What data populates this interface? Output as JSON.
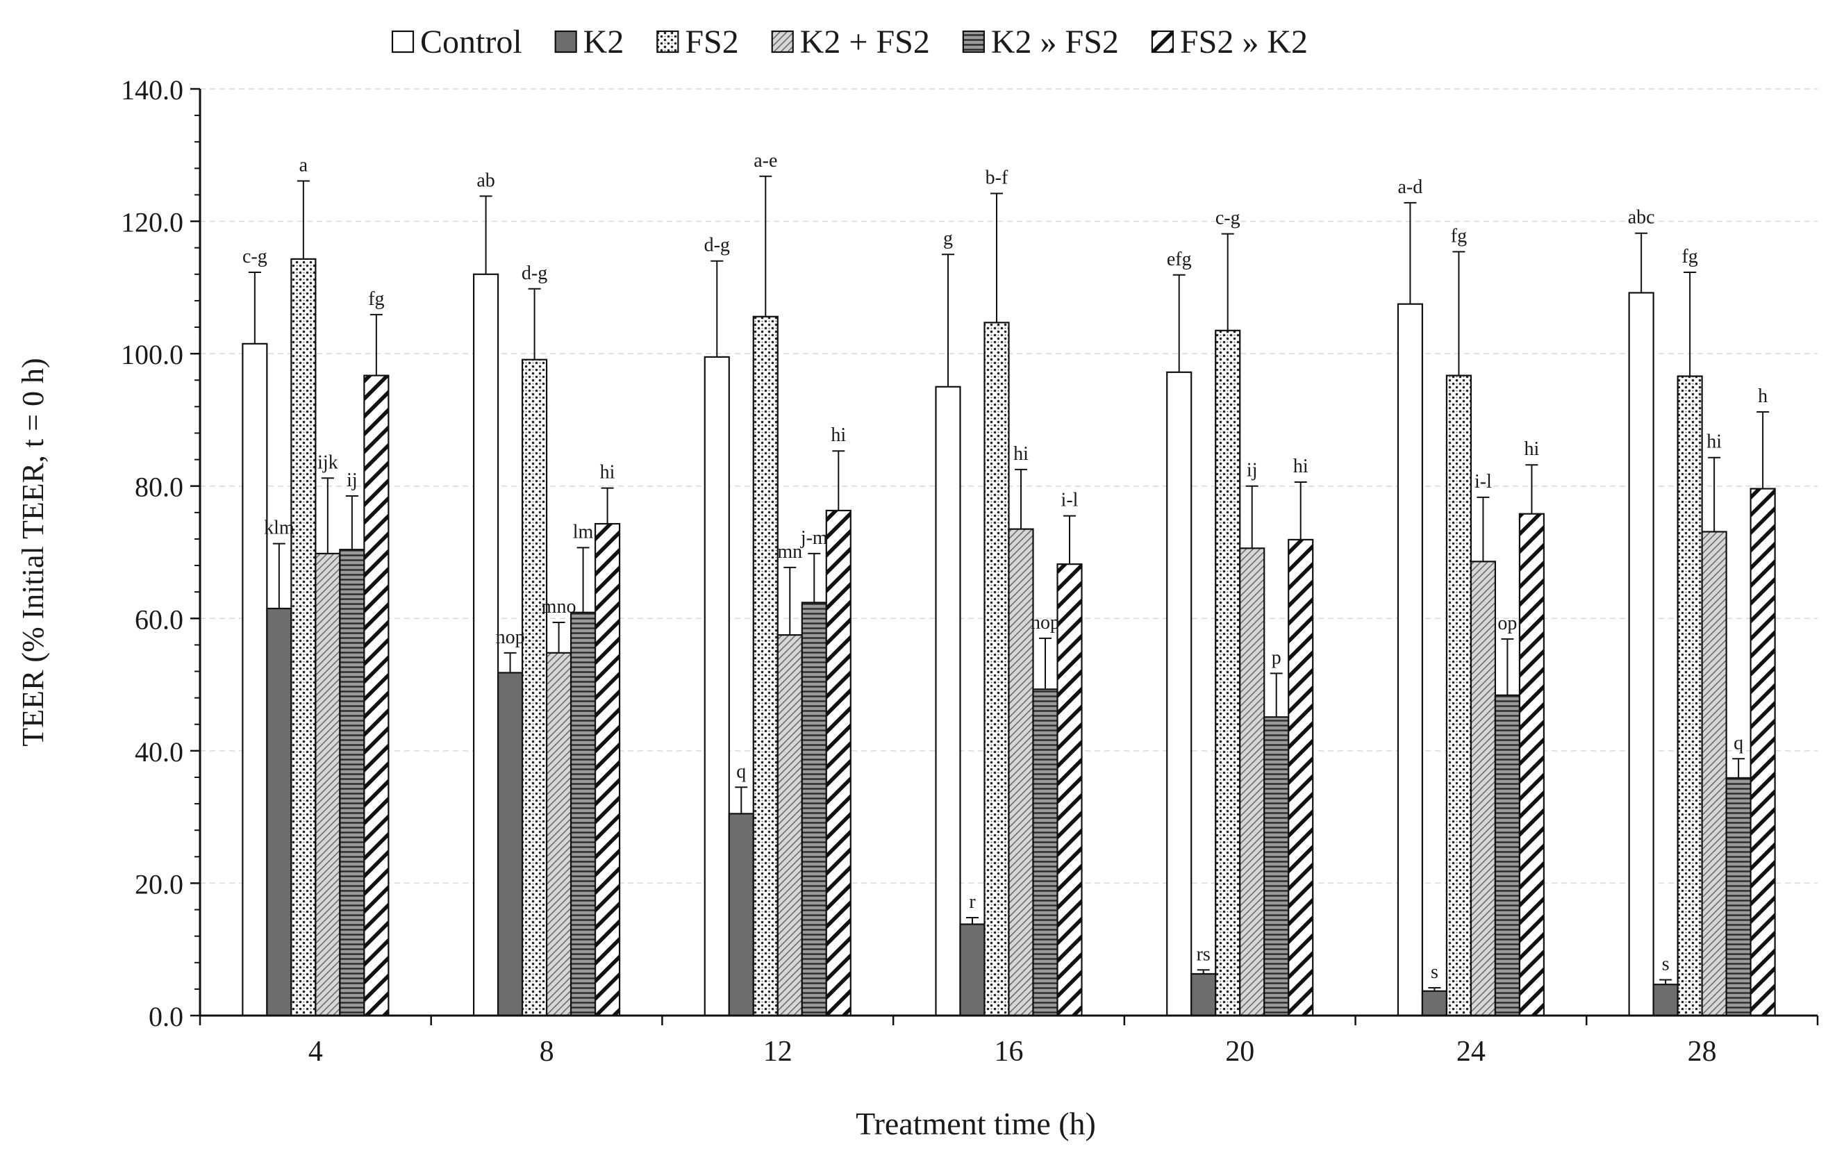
{
  "chart_data": {
    "type": "bar",
    "title": "",
    "xlabel": "Treatment time (h)",
    "ylabel": "TEER (% Initial TEER, t = 0 h)",
    "ylim": [
      0,
      140
    ],
    "yticks": [
      "0.0",
      "20.0",
      "40.0",
      "60.0",
      "80.0",
      "100.0",
      "120.0",
      "140.0"
    ],
    "grid": "horizontal dashed",
    "legend_position": "top-center",
    "categories": [
      "4",
      "8",
      "12",
      "16",
      "20",
      "24",
      "28"
    ],
    "series": [
      {
        "name": "Control",
        "pattern": "white",
        "values": [
          101.5,
          112,
          99.5,
          95,
          97.2,
          107.5,
          109.2
        ],
        "errors": [
          10.8,
          11.8,
          14.5,
          20,
          14.7,
          15.3,
          9
        ],
        "letters": [
          "c-g",
          "ab",
          "d-g",
          "g",
          "efg",
          "a-d",
          "abc"
        ]
      },
      {
        "name": "K2",
        "pattern": "solid-gray",
        "values": [
          61.5,
          51.8,
          30.5,
          13.8,
          6.3,
          3.7,
          4.7
        ],
        "errors": [
          9.8,
          3,
          4,
          1,
          0.6,
          0.5,
          0.7
        ],
        "letters": [
          "klm",
          "nop",
          "q",
          "r",
          "rs",
          "s",
          "s"
        ]
      },
      {
        "name": "FS2",
        "pattern": "dotted",
        "values": [
          114.3,
          99.1,
          105.6,
          104.7,
          103.5,
          96.7,
          96.6
        ],
        "errors": [
          11.8,
          10.7,
          21.2,
          19.5,
          14.6,
          18.7,
          15.7
        ],
        "letters": [
          "a",
          "d-g",
          "a-e",
          "b-f",
          "c-g",
          "fg",
          "fg"
        ]
      },
      {
        "name": "K2 + FS2",
        "pattern": "diagonal-thin",
        "values": [
          69.8,
          54.8,
          57.5,
          73.5,
          70.6,
          68.6,
          73.1
        ],
        "errors": [
          11.4,
          4.6,
          10.2,
          9,
          9.4,
          9.7,
          11.2
        ],
        "letters": [
          "ijk",
          "mno",
          "mn",
          "hi",
          "ij",
          "i-l",
          "hi"
        ]
      },
      {
        "name": "K2 » FS2",
        "pattern": "horizontal-lines",
        "values": [
          70.4,
          60.9,
          62.4,
          49.3,
          45.1,
          48.4,
          35.9
        ],
        "errors": [
          8.1,
          9.8,
          7.4,
          7.7,
          6.6,
          8.5,
          2.9
        ],
        "letters": [
          "ij",
          "lm",
          "j-m",
          "nop",
          "p",
          "op",
          "q"
        ]
      },
      {
        "name": "FS2 » K2",
        "pattern": "diagonal-thick",
        "values": [
          96.7,
          74.3,
          76.3,
          68.2,
          71.9,
          75.8,
          79.6
        ],
        "errors": [
          9.2,
          5.4,
          9,
          7.3,
          8.7,
          7.4,
          11.6
        ],
        "letters": [
          "fg",
          "hi",
          "hi",
          "i-l",
          "hi",
          "hi",
          "h"
        ]
      }
    ]
  }
}
